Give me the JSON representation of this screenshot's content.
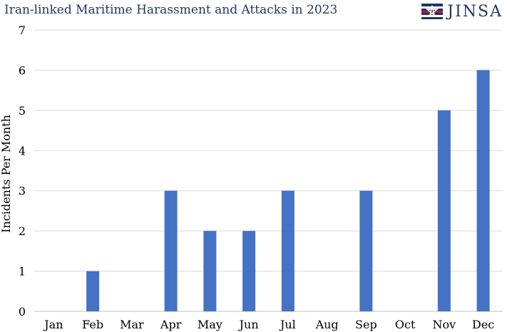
{
  "brand": {
    "name": "JINSA",
    "icon": "jinsa-flag-star-logo",
    "colors": {
      "navy": "#1f3864",
      "red": "#c8102e"
    }
  },
  "chart_data": {
    "type": "bar",
    "title": "Iran-linked Maritime Harassment and Attacks in 2023",
    "xlabel": "",
    "ylabel": "Incidents Per Month",
    "categories": [
      "Jan",
      "Feb",
      "Mar",
      "Apr",
      "May",
      "Jun",
      "Jul",
      "Aug",
      "Sep",
      "Oct",
      "Nov",
      "Dec"
    ],
    "values": [
      0,
      1,
      0,
      3,
      2,
      2,
      3,
      0,
      3,
      0,
      5,
      6
    ],
    "ylim": [
      0,
      7
    ],
    "yticks": [
      0,
      1,
      2,
      3,
      4,
      5,
      6,
      7
    ],
    "grid": true,
    "bar_color": "#4472c4",
    "legend": "none"
  }
}
